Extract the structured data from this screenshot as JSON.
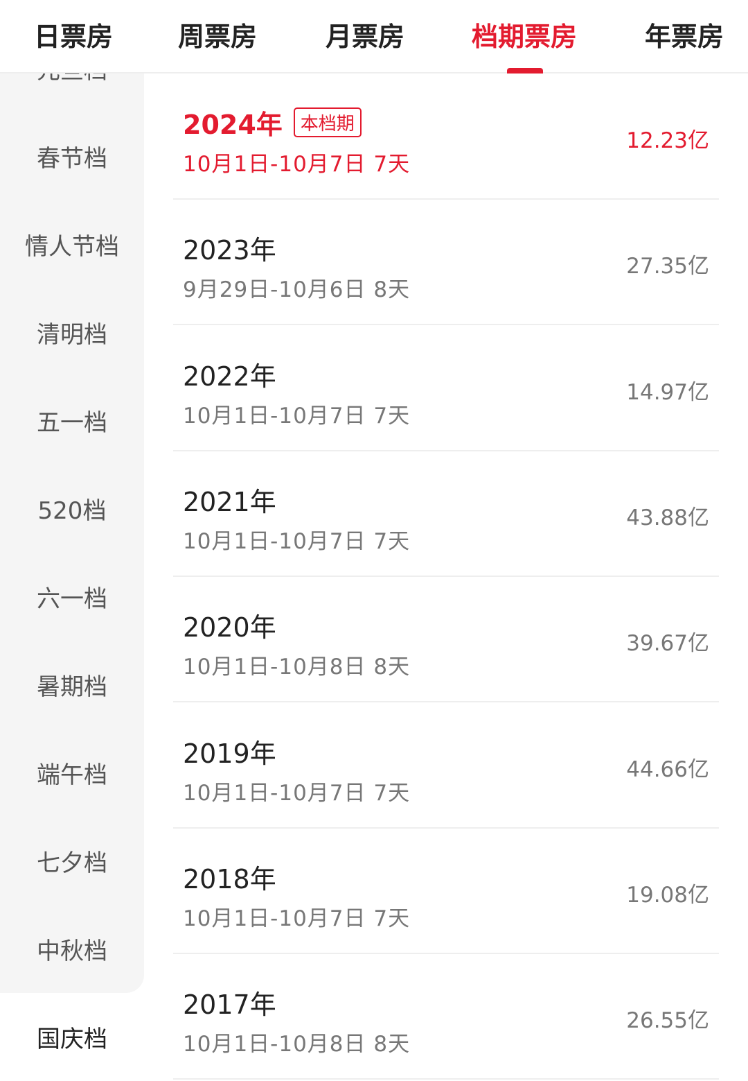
{
  "tabs": [
    {
      "label": "日票房"
    },
    {
      "label": "周票房"
    },
    {
      "label": "月票房"
    },
    {
      "label": "档期票房",
      "active": true
    },
    {
      "label": "年票房"
    }
  ],
  "sidebar": [
    {
      "label": "元旦档"
    },
    {
      "label": "春节档"
    },
    {
      "label": "情人节档"
    },
    {
      "label": "清明档"
    },
    {
      "label": "五一档"
    },
    {
      "label": "520档"
    },
    {
      "label": "六一档"
    },
    {
      "label": "暑期档"
    },
    {
      "label": "端午档"
    },
    {
      "label": "七夕档"
    },
    {
      "label": "中秋档"
    },
    {
      "label": "国庆档",
      "selected": true
    }
  ],
  "rows": [
    {
      "year": "2024年",
      "badge": "本档期",
      "date": "10月1日-10月7日 7天",
      "value": "12.23亿"
    },
    {
      "year": "2023年",
      "date": "9月29日-10月6日 8天",
      "value": "27.35亿"
    },
    {
      "year": "2022年",
      "date": "10月1日-10月7日 7天",
      "value": "14.97亿"
    },
    {
      "year": "2021年",
      "date": "10月1日-10月7日 7天",
      "value": "43.88亿"
    },
    {
      "year": "2020年",
      "date": "10月1日-10月8日 8天",
      "value": "39.67亿"
    },
    {
      "year": "2019年",
      "date": "10月1日-10月7日 7天",
      "value": "44.66亿"
    },
    {
      "year": "2018年",
      "date": "10月1日-10月7日 7天",
      "value": "19.08亿"
    },
    {
      "year": "2017年",
      "date": "10月1日-10月8日 8天",
      "value": "26.55亿"
    }
  ],
  "colors": {
    "accent": "#e31b2f",
    "sidebar_bg": "#f5f5f5"
  }
}
